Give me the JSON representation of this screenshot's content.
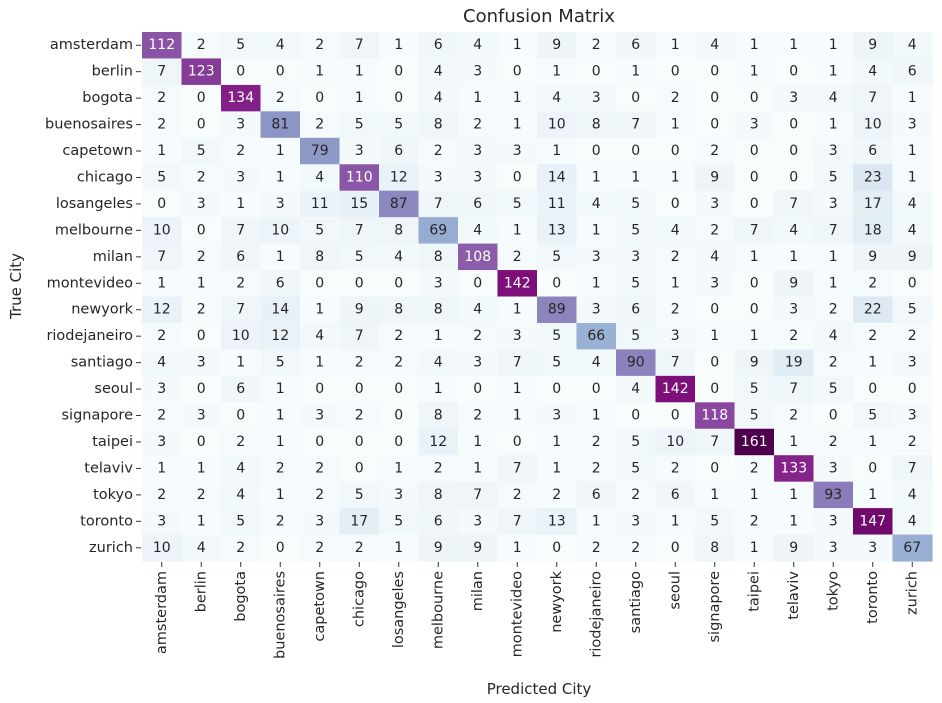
{
  "chart_data": {
    "type": "heatmap",
    "title": "Confusion Matrix",
    "xlabel": "Predicted City",
    "ylabel": "True City",
    "row_labels": [
      "amsterdam",
      "berlin",
      "bogota",
      "buenosaires",
      "capetown",
      "chicago",
      "losangeles",
      "melbourne",
      "milan",
      "montevideo",
      "newyork",
      "riodejaneiro",
      "santiago",
      "seoul",
      "signapore",
      "taipei",
      "telaviv",
      "tokyo",
      "toronto",
      "zurich"
    ],
    "col_labels": [
      "amsterdam",
      "berlin",
      "bogota",
      "buenosaires",
      "capetown",
      "chicago",
      "losangeles",
      "melbourne",
      "milan",
      "montevideo",
      "newyork",
      "riodejaneiro",
      "santiago",
      "seoul",
      "signapore",
      "taipei",
      "telaviv",
      "tokyo",
      "toronto",
      "zurich"
    ],
    "values": [
      [
        112,
        2,
        5,
        4,
        2,
        7,
        1,
        6,
        4,
        1,
        9,
        2,
        6,
        1,
        4,
        1,
        1,
        1,
        9,
        4
      ],
      [
        7,
        123,
        0,
        0,
        1,
        1,
        0,
        4,
        3,
        0,
        1,
        0,
        1,
        0,
        0,
        1,
        0,
        1,
        4,
        6
      ],
      [
        2,
        0,
        134,
        2,
        0,
        1,
        0,
        4,
        1,
        1,
        4,
        3,
        0,
        2,
        0,
        0,
        3,
        4,
        7,
        1
      ],
      [
        2,
        0,
        3,
        81,
        2,
        5,
        5,
        8,
        2,
        1,
        10,
        8,
        7,
        1,
        0,
        3,
        0,
        1,
        10,
        3
      ],
      [
        1,
        5,
        2,
        1,
        79,
        3,
        6,
        2,
        3,
        3,
        1,
        0,
        0,
        0,
        2,
        0,
        0,
        3,
        6,
        1
      ],
      [
        5,
        2,
        3,
        1,
        4,
        110,
        12,
        3,
        3,
        0,
        14,
        1,
        1,
        1,
        9,
        0,
        0,
        5,
        23,
        1
      ],
      [
        0,
        3,
        1,
        3,
        11,
        15,
        87,
        7,
        6,
        5,
        11,
        4,
        5,
        0,
        3,
        0,
        7,
        3,
        17,
        4
      ],
      [
        10,
        0,
        7,
        10,
        5,
        7,
        8,
        69,
        4,
        1,
        13,
        1,
        5,
        4,
        2,
        7,
        4,
        7,
        18,
        4
      ],
      [
        7,
        2,
        6,
        1,
        8,
        5,
        4,
        8,
        108,
        2,
        5,
        3,
        3,
        2,
        4,
        1,
        1,
        1,
        9,
        9
      ],
      [
        1,
        1,
        2,
        6,
        0,
        0,
        0,
        3,
        0,
        142,
        0,
        1,
        5,
        1,
        3,
        0,
        9,
        1,
        2,
        0
      ],
      [
        12,
        2,
        7,
        14,
        1,
        9,
        8,
        8,
        4,
        1,
        89,
        3,
        6,
        2,
        0,
        0,
        3,
        2,
        22,
        5
      ],
      [
        2,
        0,
        10,
        12,
        4,
        7,
        2,
        1,
        2,
        3,
        5,
        66,
        5,
        3,
        1,
        1,
        2,
        4,
        2,
        2
      ],
      [
        4,
        3,
        1,
        5,
        1,
        2,
        2,
        4,
        3,
        7,
        5,
        4,
        90,
        7,
        0,
        9,
        19,
        2,
        1,
        3
      ],
      [
        3,
        0,
        6,
        1,
        0,
        0,
        0,
        1,
        0,
        1,
        0,
        0,
        4,
        142,
        0,
        5,
        7,
        5,
        0,
        0
      ],
      [
        2,
        3,
        0,
        1,
        3,
        2,
        0,
        8,
        2,
        1,
        3,
        1,
        0,
        0,
        118,
        5,
        2,
        0,
        5,
        3
      ],
      [
        3,
        0,
        2,
        1,
        0,
        0,
        0,
        12,
        1,
        0,
        1,
        2,
        5,
        10,
        7,
        161,
        1,
        2,
        1,
        2
      ],
      [
        1,
        1,
        4,
        2,
        2,
        0,
        1,
        2,
        1,
        7,
        1,
        2,
        5,
        2,
        0,
        2,
        133,
        3,
        0,
        7
      ],
      [
        2,
        2,
        4,
        1,
        2,
        5,
        3,
        8,
        7,
        2,
        2,
        6,
        2,
        6,
        1,
        1,
        1,
        93,
        1,
        4
      ],
      [
        3,
        1,
        5,
        2,
        3,
        17,
        5,
        6,
        3,
        7,
        13,
        1,
        3,
        1,
        5,
        2,
        1,
        3,
        147,
        4
      ],
      [
        10,
        4,
        2,
        0,
        2,
        2,
        1,
        9,
        9,
        1,
        0,
        2,
        2,
        0,
        8,
        1,
        9,
        3,
        3,
        67
      ]
    ],
    "vmin": 0,
    "vmax": 161,
    "colormap": "BuPu",
    "colorbar": false,
    "annotations": true
  },
  "colors": {
    "text_dark": "#262626",
    "text_light": "#ffffff",
    "tick_color": "#333333"
  }
}
